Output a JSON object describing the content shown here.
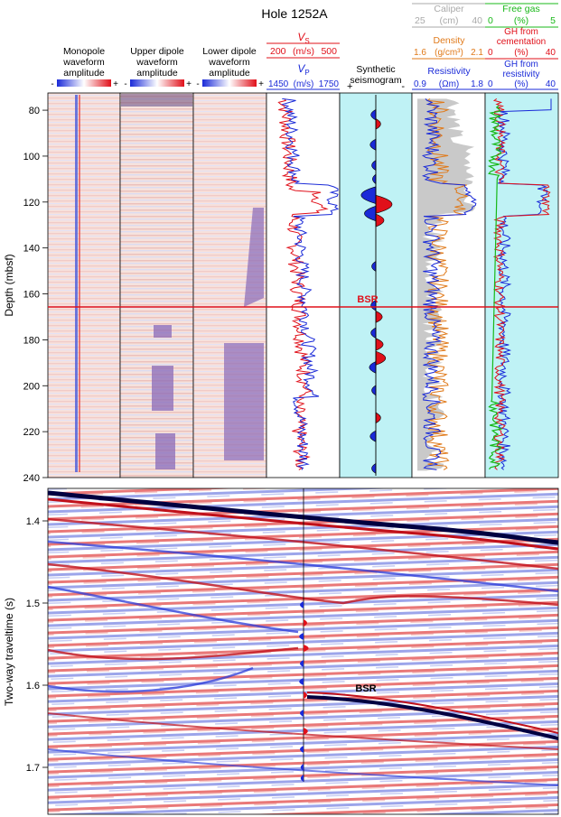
{
  "title": "Hole 1252A",
  "colors": {
    "red": "#e0101a",
    "blue": "#1a2ad8",
    "orange": "#e07a1a",
    "green": "#18b818",
    "gray": "#aaaaaa",
    "cyan": "#bff2f5",
    "pink": "#f7e1dc"
  },
  "tracks": {
    "monopole": {
      "title_lines": [
        "Monopole",
        "waveform",
        "amplitude"
      ],
      "minus": "-",
      "plus": "+"
    },
    "upper_dipole": {
      "title_lines": [
        "Upper dipole",
        "waveform",
        "amplitude"
      ],
      "minus": "-",
      "plus": "+"
    },
    "lower_dipole": {
      "title_lines": [
        "Lower dipole",
        "waveform",
        "amplitude"
      ],
      "minus": "-",
      "plus": "+"
    },
    "velocity": {
      "vs": {
        "label": "V",
        "sub": "S",
        "min": "200",
        "unit": "(m/s)",
        "max": "500"
      },
      "vp": {
        "label": "V",
        "sub": "P",
        "min": "1450",
        "unit": "(m/s)",
        "max": "1750"
      }
    },
    "synthetic": {
      "title_lines": [
        "Synthetic",
        "seismogram"
      ],
      "plus": "+",
      "minus": "-"
    },
    "logs": {
      "caliper": {
        "label": "Caliper",
        "min": "25",
        "unit": "(cm)",
        "max": "40"
      },
      "density": {
        "label": "Density",
        "min": "1.6",
        "unit": "(g/cm³)",
        "max": "2.1"
      },
      "resistivity": {
        "label": "Resistivity",
        "min": "0.9",
        "unit": "(Ωm)",
        "max": "1.8"
      }
    },
    "gas": {
      "free_gas": {
        "label": "Free gas",
        "min": "0",
        "unit": "(%)",
        "max": "5"
      },
      "gh_cementation": {
        "label_lines": [
          "GH from",
          "cementation"
        ],
        "min": "0",
        "unit": "(%)",
        "max": "40"
      },
      "gh_resistivity": {
        "label_lines": [
          "GH from",
          "resistivity"
        ],
        "min": "0",
        "unit": "(%)",
        "max": "40"
      }
    }
  },
  "depth_axis": {
    "label": "Depth (mbsf)",
    "ticks": [
      "80",
      "100",
      "120",
      "140",
      "160",
      "180",
      "200",
      "220",
      "240"
    ]
  },
  "bsr_label": "BSR",
  "seismic": {
    "axis_label": "Two-way traveltime (s)",
    "ticks": [
      "1.4",
      "1.5",
      "1.6",
      "1.7"
    ],
    "bsr_label": "BSR"
  }
}
